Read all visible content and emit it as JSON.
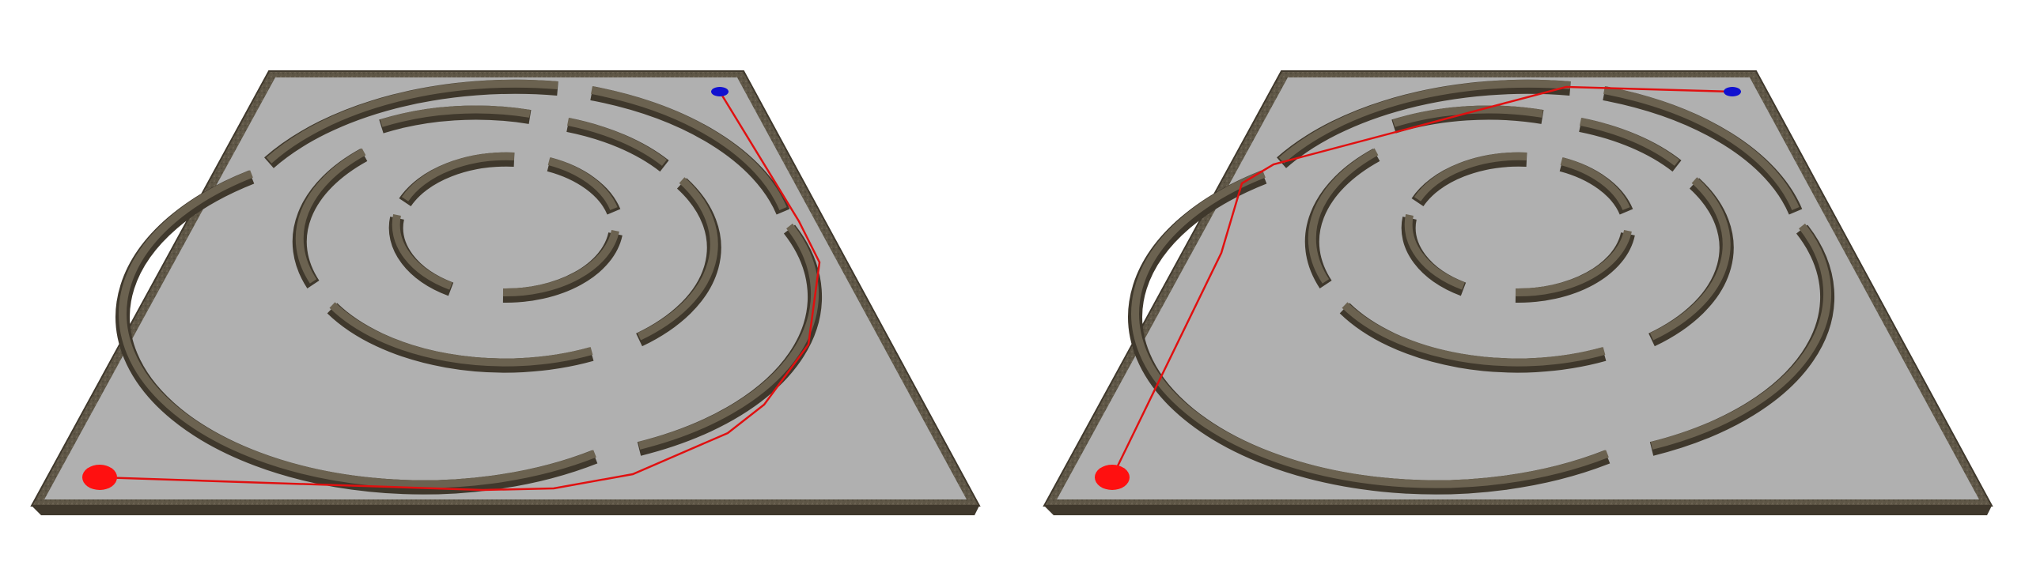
{
  "figure": {
    "description_visible_text": "",
    "panels": [
      {
        "panel_id": "left-maze",
        "start_color": "#ff1010",
        "goal_color": "#1010d0",
        "path_color": "#e01010",
        "route": "around-right-side"
      },
      {
        "panel_id": "right-maze",
        "start_color": "#ff1010",
        "goal_color": "#1010d0",
        "path_color": "#e01010",
        "route": "around-left-side"
      }
    ]
  },
  "colors": {
    "floor": "#b0b0b0",
    "wall_top": "#6b6250",
    "wall_side": "#3f382c",
    "border": "#5a5140",
    "background": "#ffffff"
  }
}
